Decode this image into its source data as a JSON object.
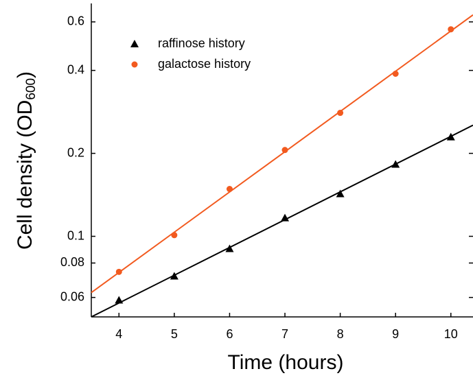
{
  "chart_data": {
    "type": "scatter",
    "xlabel": "Time (hours)",
    "ylabel": {
      "text": "Cell density (OD",
      "sub": "600",
      "end": ")"
    },
    "log_y": true,
    "xlim": [
      3.5,
      10.4
    ],
    "xticks": [
      4,
      5,
      6,
      7,
      8,
      9,
      10
    ],
    "ylim": [
      0.051,
      0.7
    ],
    "yticks": [
      0.06,
      0.08,
      0.1,
      0.2,
      0.4,
      0.6
    ],
    "legend": "upper left",
    "series": [
      {
        "name": "raffinose history",
        "color": "#000000",
        "marker": "triangle",
        "x": [
          4,
          5,
          6,
          7,
          8,
          9,
          10
        ],
        "values": [
          0.0587,
          0.0717,
          0.0902,
          0.1167,
          0.1427,
          0.1825,
          0.2294
        ],
        "fit": {
          "x": [
            3.5,
            10.4
          ],
          "values": [
            0.051,
            0.253
          ]
        }
      },
      {
        "name": "galactose history",
        "color": "#f25a1f",
        "marker": "circle",
        "x": [
          4,
          5,
          6,
          7,
          8,
          9,
          10
        ],
        "values": [
          0.0743,
          0.101,
          0.1485,
          0.2057,
          0.2805,
          0.389,
          0.564
        ],
        "fit": {
          "x": [
            3.5,
            10.4
          ],
          "values": [
            0.0625,
            0.636
          ]
        }
      }
    ]
  }
}
